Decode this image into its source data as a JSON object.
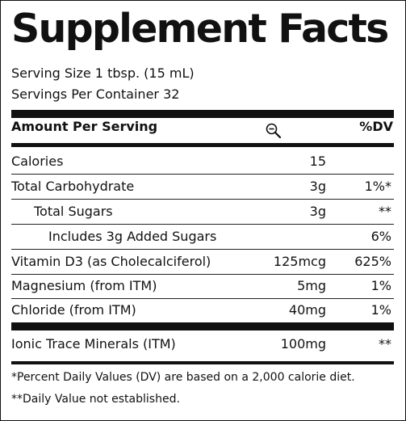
{
  "title": "Supplement Facts",
  "serving_size": "Serving Size 1 tbsp. (15 mL)",
  "servings_per_container": "Servings Per Container 32",
  "header": {
    "amount_label": "Amount Per Serving",
    "dv_label": "%DV",
    "zoom_icon": "zoom-out-icon"
  },
  "rows": [
    {
      "name": "Calories",
      "amount": "15",
      "dv": ""
    },
    {
      "name": "Total Carbohydrate",
      "amount": "3g",
      "dv": "1%*"
    },
    {
      "name": "Total Sugars",
      "amount": "3g",
      "dv": "**"
    },
    {
      "name": "Includes 3g Added Sugars",
      "amount": "",
      "dv": "6%"
    },
    {
      "name": "Vitamin D3 (as Cholecalciferol)",
      "amount": "125mcg",
      "dv": "625%"
    },
    {
      "name": "Magnesium (from ITM)",
      "amount": "5mg",
      "dv": "1%"
    },
    {
      "name": "Chloride (from ITM)",
      "amount": "40mg",
      "dv": "1%"
    }
  ],
  "itm_row": {
    "name": "Ionic Trace Minerals (ITM)",
    "amount": "100mg",
    "dv": "**"
  },
  "footnotes": [
    "*Percent Daily Values (DV) are based on a 2,000 calorie diet.",
    "**Daily Value not established."
  ]
}
